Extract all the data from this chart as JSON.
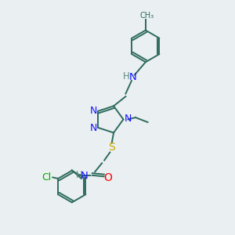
{
  "background_color": "#eaeff1",
  "colors": {
    "N": "#1414ff",
    "O": "#ff0000",
    "S": "#ccaa00",
    "Cl": "#00aa00",
    "bond": "#2d6b5e",
    "H": "#5a8a82"
  },
  "figsize": [
    3.0,
    3.0
  ],
  "dpi": 100
}
